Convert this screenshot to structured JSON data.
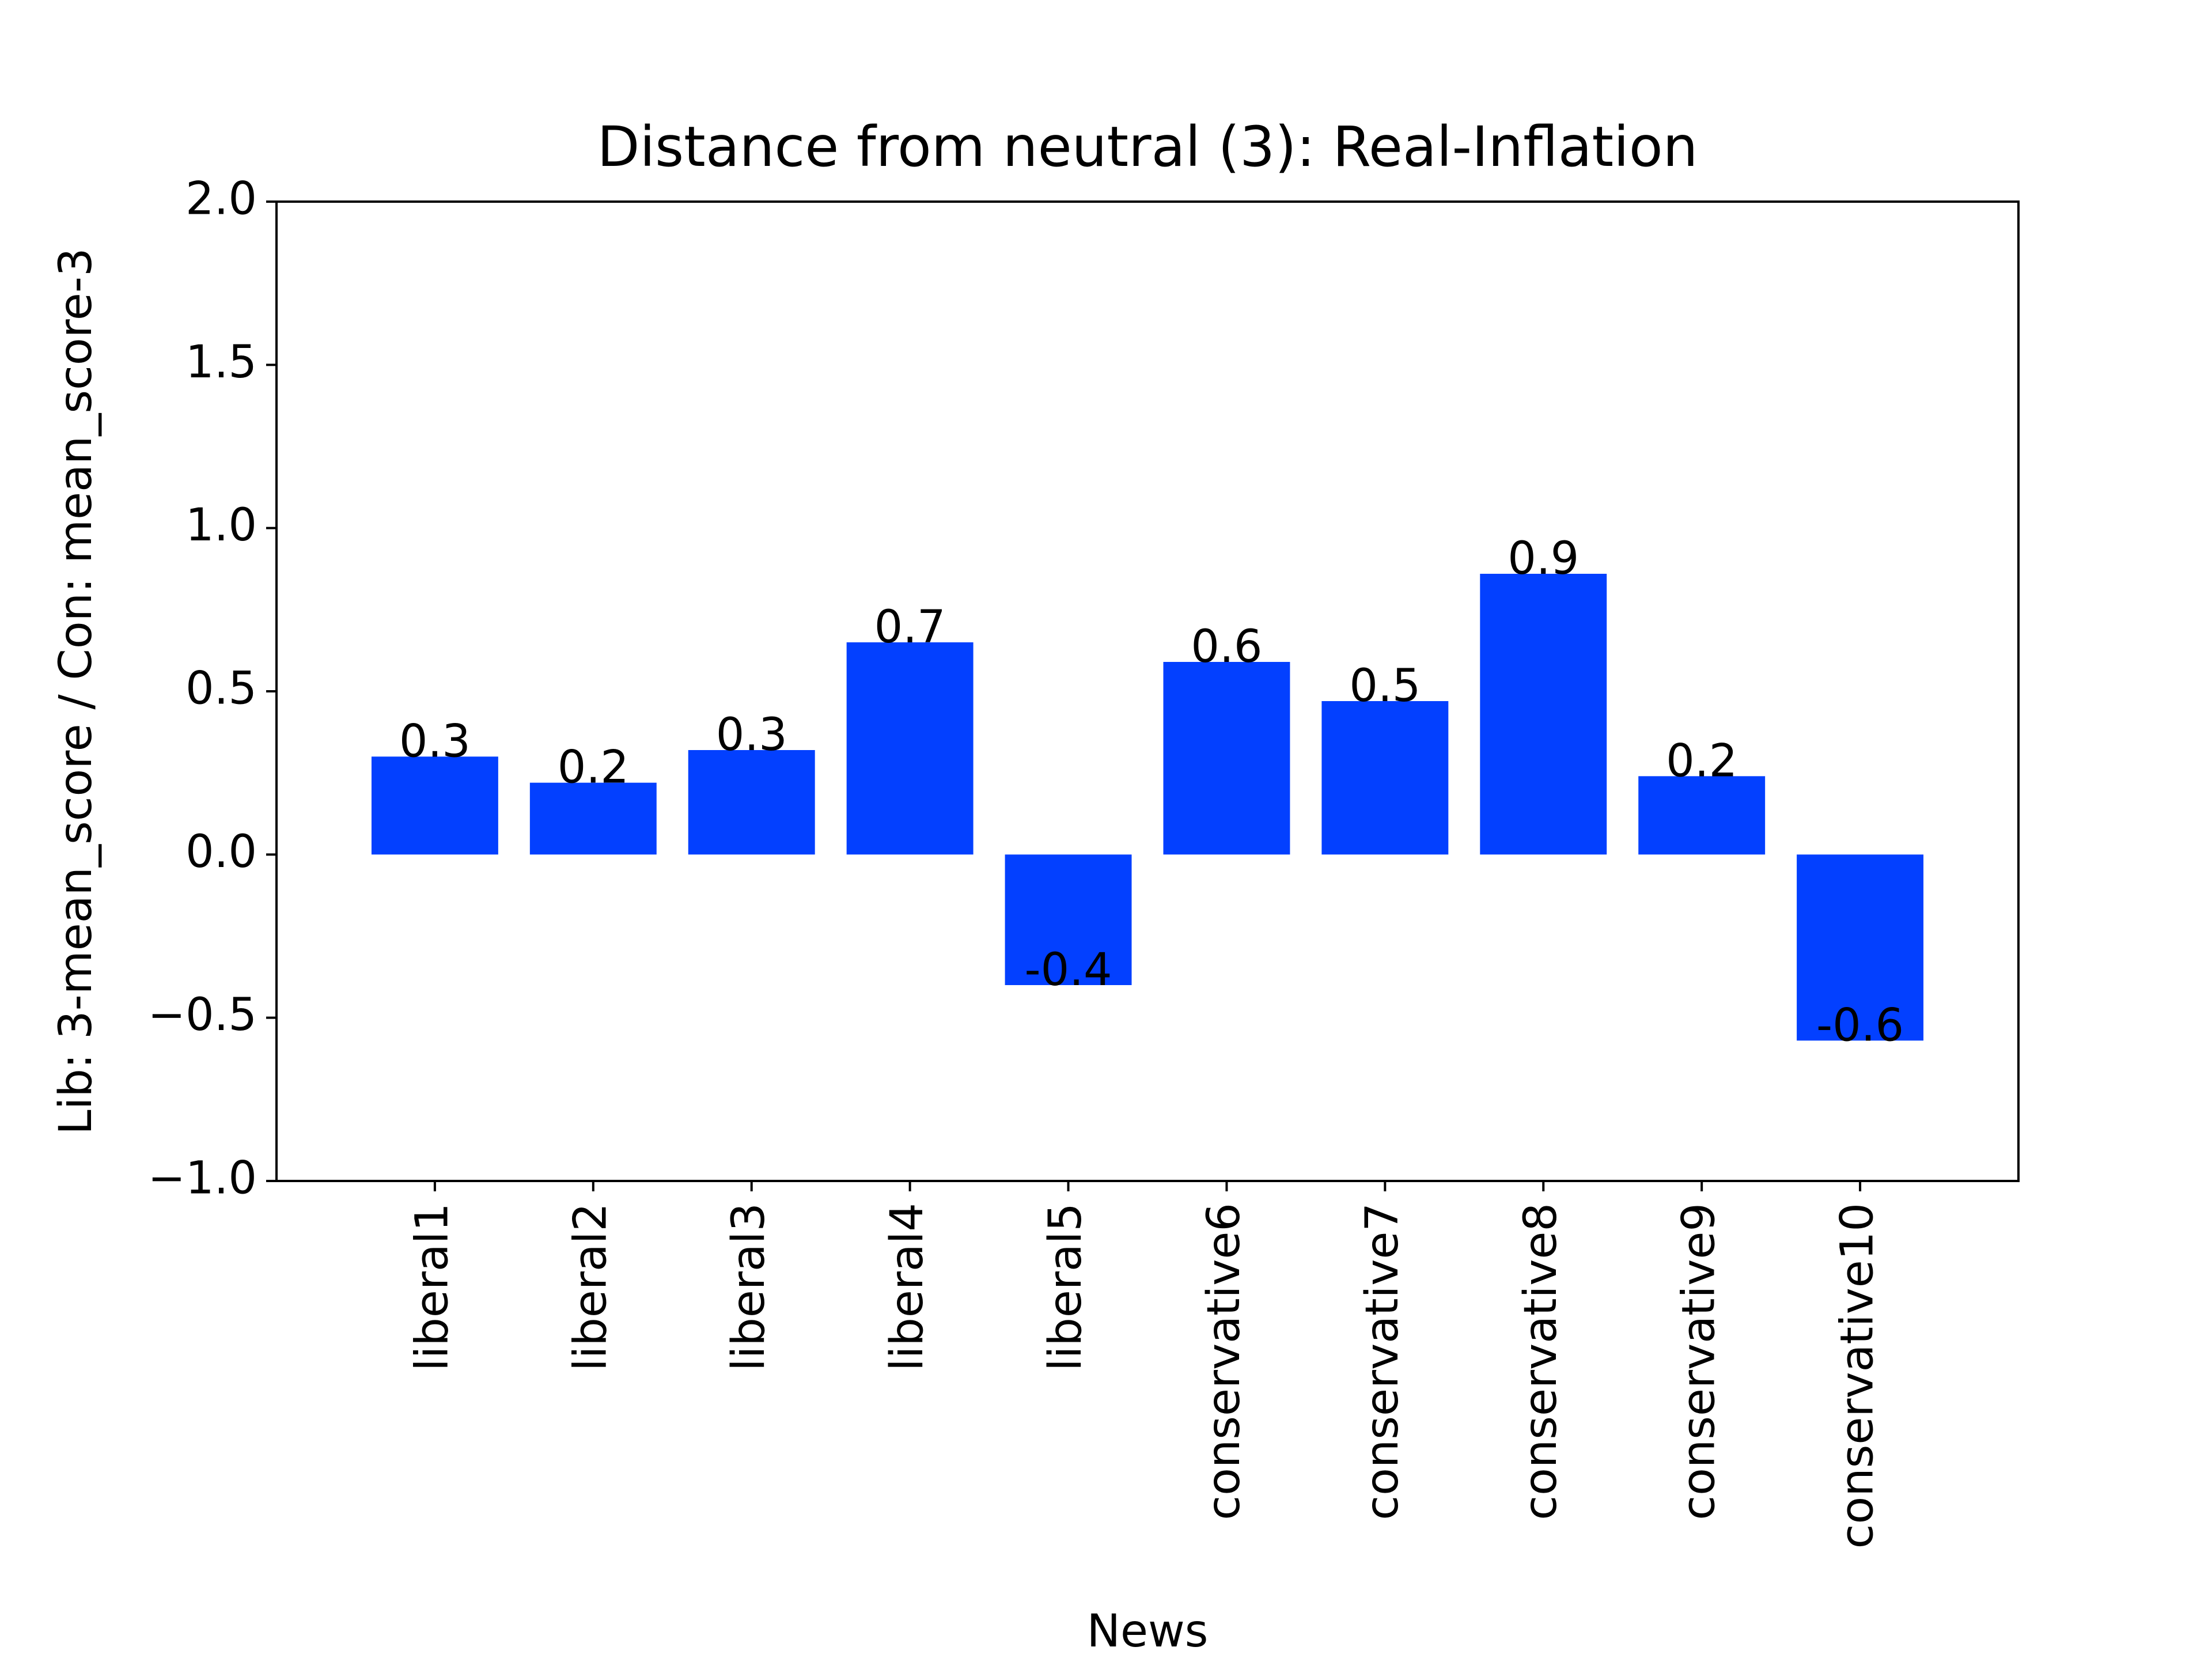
{
  "chart_data": {
    "type": "bar",
    "title": "Distance from neutral (3): Real-Inflation",
    "xlabel": "News",
    "ylabel": "Lib: 3-mean_score / Con: mean_score-3",
    "categories": [
      "liberal1",
      "liberal2",
      "liberal3",
      "liberal4",
      "liberal5",
      "conservative6",
      "conservative7",
      "conservative8",
      "conservative9",
      "conservative10"
    ],
    "values": [
      0.3,
      0.22,
      0.32,
      0.65,
      -0.4,
      0.59,
      0.47,
      0.86,
      0.24,
      -0.57
    ],
    "data_labels": [
      "0.3",
      "0.2",
      "0.3",
      "0.7",
      "-0.4",
      "0.6",
      "0.5",
      "0.9",
      "0.2",
      "-0.6"
    ],
    "ylim": [
      -1.0,
      2.0
    ],
    "yticks": [
      -1.0,
      -0.5,
      0.0,
      0.5,
      1.0,
      1.5,
      2.0
    ],
    "ytick_labels": [
      "−1.0",
      "−0.5",
      "0.0",
      "0.5",
      "1.0",
      "1.5",
      "2.0"
    ],
    "bar_color": "#0340ff",
    "grid": false,
    "legend": "none"
  }
}
